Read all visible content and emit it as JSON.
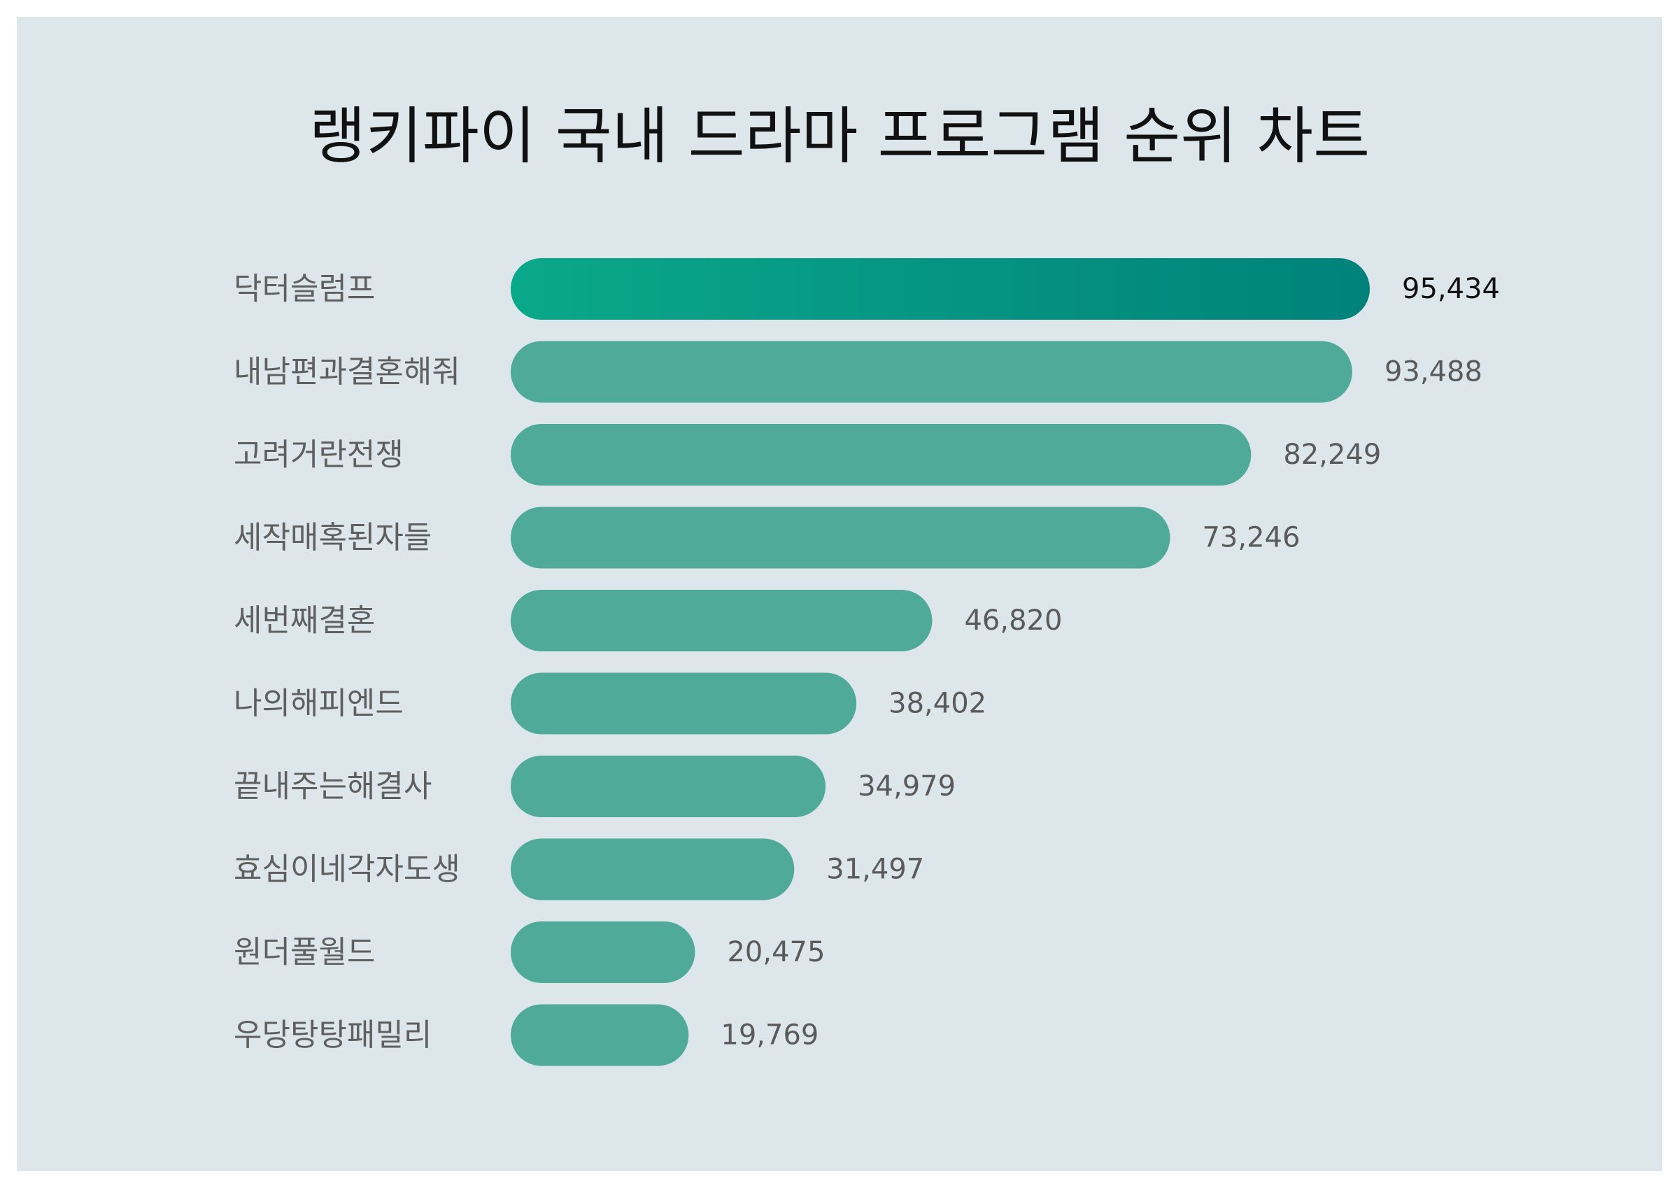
{
  "chart_data": {
    "type": "bar",
    "orientation": "horizontal",
    "title": "랭키파이 국내 드라마 프로그램 순위 차트",
    "categories": [
      "닥터슬럼프",
      "내남편과결혼해줘",
      "고려거란전쟁",
      "세작매혹된자들",
      "세번째결혼",
      "나의해피엔드",
      "끝내주는해결사",
      "효심이네각자도생",
      "원더풀월드",
      "우당탕탕패밀리"
    ],
    "values": [
      95434,
      93488,
      82249,
      73246,
      46820,
      38402,
      34979,
      31497,
      20475,
      19769
    ],
    "value_labels": [
      "95,434",
      "93,488",
      "82,249",
      "73,246",
      "46,820",
      "38,402",
      "34,979",
      "31,497",
      "20,475",
      "19,769"
    ],
    "xlim": [
      0,
      95434
    ],
    "grid": false,
    "legend": "none"
  },
  "colors": {
    "background": "#dce6eb",
    "bar": "#50aa9a",
    "top_bar_start": "#0aa88a",
    "top_bar_end": "#00827a",
    "title": "#111111",
    "label": "#5f5f5f"
  }
}
